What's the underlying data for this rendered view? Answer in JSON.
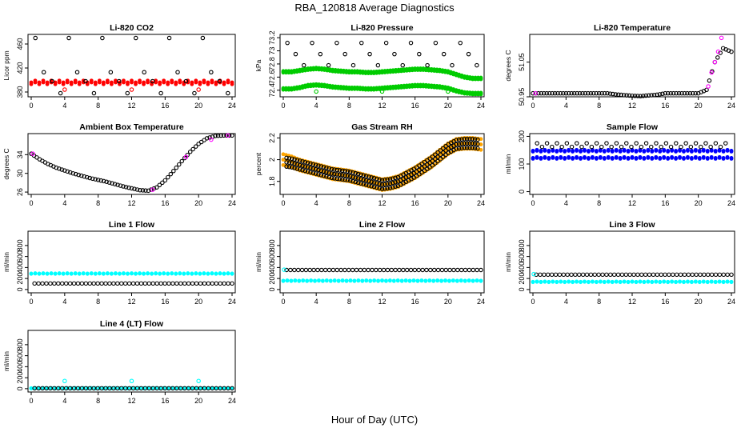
{
  "title": "RBA_120818  Average Diagnostics",
  "xlabel": "Hour of Day (UTC)",
  "chart_data": [
    {
      "type": "scatter",
      "title": "Li-820 CO2",
      "ylabel": "Licor ppm",
      "xlim": [
        0,
        24
      ],
      "ylim": [
        372,
        476
      ],
      "xticks": [
        0,
        4,
        8,
        12,
        16,
        20,
        24
      ],
      "yticks": [
        380,
        420,
        460
      ],
      "series": [
        {
          "color": "#ff0000",
          "marker": "filled",
          "shape": "band",
          "x0": 0,
          "x1": 24,
          "y": 396,
          "spread": 3
        },
        {
          "color": "#000000",
          "marker": "open",
          "shape": "levels",
          "x0": 0.5,
          "x1": 23.5,
          "step": 1.0,
          "levels": [
            470,
            413,
            398,
            378
          ]
        }
      ],
      "points": [
        {
          "color": "#ff0000",
          "x": 4,
          "y": 384
        },
        {
          "color": "#ff0000",
          "x": 12,
          "y": 384
        },
        {
          "color": "#ff0000",
          "x": 20,
          "y": 384
        }
      ]
    },
    {
      "type": "scatter",
      "title": "Li-820 Pressure",
      "ylabel": "kPa",
      "xlim": [
        0,
        24
      ],
      "ylim": [
        72.3,
        73.25
      ],
      "xticks": [
        0,
        4,
        8,
        12,
        16,
        20,
        24
      ],
      "yticks": [
        72.4,
        72.6,
        72.8,
        73.0,
        73.2
      ],
      "series": [
        {
          "color": "#00cc00",
          "marker": "filled",
          "shape": "line",
          "x0": 0,
          "x1": 24,
          "spread": 0.012,
          "y": [
            72.68,
            72.68,
            72.7,
            72.72,
            72.73,
            72.72,
            72.7,
            72.69,
            72.68,
            72.68,
            72.67,
            72.67,
            72.68,
            72.69,
            72.7,
            72.71,
            72.72,
            72.72,
            72.71,
            72.7,
            72.68,
            72.64,
            72.6,
            72.58,
            72.58
          ]
        },
        {
          "color": "#00cc00",
          "marker": "filled",
          "shape": "line",
          "x0": 0,
          "x1": 24,
          "spread": 0.012,
          "y": [
            72.42,
            72.42,
            72.44,
            72.47,
            72.48,
            72.47,
            72.45,
            72.44,
            72.43,
            72.43,
            72.42,
            72.42,
            72.43,
            72.44,
            72.45,
            72.46,
            72.47,
            72.47,
            72.46,
            72.45,
            72.43,
            72.39,
            72.36,
            72.35,
            72.35
          ]
        },
        {
          "color": "#000000",
          "marker": "open",
          "shape": "levels",
          "x0": 0.5,
          "x1": 23.5,
          "step": 1.0,
          "levels": [
            73.12,
            72.95,
            72.78
          ]
        }
      ],
      "points": [
        {
          "color": "#00cc00",
          "x": 4,
          "y": 72.38
        },
        {
          "color": "#00cc00",
          "x": 12,
          "y": 72.38
        },
        {
          "color": "#00cc00",
          "x": 20,
          "y": 72.38
        }
      ]
    },
    {
      "type": "scatter",
      "title": "Li-820 Temperature",
      "ylabel": "degrees C",
      "xlim": [
        0,
        24
      ],
      "ylim": [
        50.95,
        51.13
      ],
      "xticks": [
        0,
        4,
        8,
        12,
        16,
        20,
        24
      ],
      "yticks": [
        50.95,
        51.05
      ],
      "series": [
        {
          "color": "#000000",
          "marker": "open",
          "shape": "line",
          "x0": 0,
          "x1": 24,
          "spread": 0.0,
          "y": [
            50.96,
            50.96,
            50.96,
            50.96,
            50.96,
            50.96,
            50.96,
            50.96,
            50.96,
            50.96,
            50.957,
            50.955,
            50.953,
            50.952,
            50.954,
            50.956,
            50.96,
            50.96,
            50.96,
            50.96,
            50.96,
            50.97,
            51.05,
            51.09,
            51.08
          ]
        }
      ],
      "points": [
        {
          "color": "#ff00ff",
          "x": 0.3,
          "y": 50.96
        },
        {
          "color": "#ff00ff",
          "x": 21.2,
          "y": 50.98
        },
        {
          "color": "#ff00ff",
          "x": 21.6,
          "y": 51.02
        },
        {
          "color": "#ff00ff",
          "x": 22.0,
          "y": 51.05
        },
        {
          "color": "#ff00ff",
          "x": 22.4,
          "y": 51.08
        },
        {
          "color": "#ff00ff",
          "x": 22.8,
          "y": 51.12
        }
      ]
    },
    {
      "type": "scatter",
      "title": "Ambient Box Temperature",
      "ylabel": "degrees C",
      "xlim": [
        0,
        24
      ],
      "ylim": [
        25.5,
        38.5
      ],
      "xticks": [
        0,
        4,
        8,
        12,
        16,
        20,
        24
      ],
      "yticks": [
        26,
        30,
        34
      ],
      "series": [
        {
          "color": "#000000",
          "marker": "open",
          "shape": "line",
          "x0": 0,
          "x1": 24,
          "spread": 0.0,
          "y": [
            34.2,
            33.0,
            32.0,
            31.2,
            30.6,
            30.0,
            29.5,
            29.0,
            28.6,
            28.2,
            27.7,
            27.2,
            26.8,
            26.4,
            26.3,
            27.0,
            28.5,
            30.5,
            32.6,
            34.6,
            36.3,
            37.5,
            38.0,
            38.1,
            38.1
          ]
        }
      ],
      "points": [
        {
          "color": "#ff00ff",
          "x": 0.2,
          "y": 34.2
        },
        {
          "color": "#ff00ff",
          "x": 14.5,
          "y": 26.5
        },
        {
          "color": "#ff00ff",
          "x": 18.5,
          "y": 33.5
        },
        {
          "color": "#ff00ff",
          "x": 21.5,
          "y": 37.2
        },
        {
          "color": "#ff00ff",
          "x": 23.5,
          "y": 38.1
        }
      ]
    },
    {
      "type": "scatter",
      "title": "Gas Stream RH",
      "ylabel": "percent",
      "xlim": [
        0,
        24
      ],
      "ylim": [
        1.68,
        2.24
      ],
      "xticks": [
        0,
        4,
        8,
        12,
        16,
        20,
        24
      ],
      "yticks": [
        1.8,
        2.0,
        2.2
      ],
      "series": [
        {
          "color": "#ffa500",
          "marker": "filled",
          "shape": "line",
          "x0": 0,
          "x1": 24,
          "spread": 0.05,
          "y": [
            2.0,
            1.98,
            1.95,
            1.93,
            1.91,
            1.89,
            1.87,
            1.86,
            1.85,
            1.83,
            1.81,
            1.79,
            1.77,
            1.78,
            1.8,
            1.84,
            1.88,
            1.93,
            1.98,
            2.04,
            2.1,
            2.14,
            2.15,
            2.15,
            2.14
          ]
        },
        {
          "color": "#000000",
          "marker": "open",
          "shape": "line",
          "x0": 0.4,
          "x1": 23.6,
          "spread": 0.04,
          "y": [
            1.98,
            1.97,
            1.95,
            1.93,
            1.91,
            1.89,
            1.87,
            1.86,
            1.85,
            1.83,
            1.81,
            1.79,
            1.77,
            1.78,
            1.8,
            1.84,
            1.88,
            1.93,
            1.98,
            2.04,
            2.1,
            2.14,
            2.15,
            2.15,
            2.14
          ]
        }
      ],
      "points": []
    },
    {
      "type": "scatter",
      "title": "Sample Flow",
      "ylabel": "ml/min",
      "xlim": [
        0,
        24
      ],
      "ylim": [
        -10,
        210
      ],
      "xticks": [
        0,
        4,
        8,
        12,
        16,
        20,
        24
      ],
      "yticks": [
        0,
        100,
        200
      ],
      "series": [
        {
          "color": "#0000ff",
          "marker": "filled",
          "shape": "band",
          "x0": 0,
          "x1": 24,
          "y": 148,
          "spread": 3
        },
        {
          "color": "#0000ff",
          "marker": "filled",
          "shape": "band",
          "x0": 0,
          "x1": 24,
          "y": 122,
          "spread": 3
        },
        {
          "color": "#000000",
          "marker": "open",
          "shape": "levels",
          "x0": 0.5,
          "x1": 23.5,
          "step": 0.6,
          "levels": [
            175,
            162
          ]
        }
      ],
      "points": []
    },
    {
      "type": "scatter",
      "title": "Line 1 Flow",
      "ylabel": "ml/min",
      "xlim": [
        0,
        24
      ],
      "ylim": [
        -60,
        1060
      ],
      "xticks": [
        0,
        4,
        8,
        12,
        16,
        20,
        24
      ],
      "yticks": [
        0,
        200,
        400,
        600,
        800
      ],
      "series": [
        {
          "color": "#00ffff",
          "marker": "filled",
          "shape": "band",
          "x0": 0,
          "x1": 24,
          "y": 290,
          "spread": 6
        },
        {
          "color": "#000000",
          "marker": "open",
          "shape": "band",
          "x0": 0.4,
          "x1": 24,
          "y": 110,
          "spread": 0
        }
      ],
      "points": []
    },
    {
      "type": "scatter",
      "title": "Line 2 Flow",
      "ylabel": "ml/min",
      "xlim": [
        0,
        24
      ],
      "ylim": [
        -60,
        1060
      ],
      "xticks": [
        0,
        4,
        8,
        12,
        16,
        20,
        24
      ],
      "yticks": [
        0,
        200,
        400,
        600,
        800
      ],
      "series": [
        {
          "color": "#00ffff",
          "marker": "filled",
          "shape": "band",
          "x0": 0,
          "x1": 24,
          "y": 160,
          "spread": 6
        },
        {
          "color": "#000000",
          "marker": "open",
          "shape": "band",
          "x0": 0.4,
          "x1": 24,
          "y": 355,
          "spread": 0
        }
      ],
      "points": [
        {
          "color": "#00ffff",
          "x": 0.1,
          "y": 360
        }
      ]
    },
    {
      "type": "scatter",
      "title": "Line 3 Flow",
      "ylabel": "ml/min",
      "xlim": [
        0,
        24
      ],
      "ylim": [
        -60,
        1060
      ],
      "xticks": [
        0,
        4,
        8,
        12,
        16,
        20,
        24
      ],
      "yticks": [
        0,
        200,
        400,
        600,
        800
      ],
      "series": [
        {
          "color": "#00ffff",
          "marker": "filled",
          "shape": "band",
          "x0": 0,
          "x1": 24,
          "y": 140,
          "spread": 6
        },
        {
          "color": "#000000",
          "marker": "open",
          "shape": "band",
          "x0": 0.4,
          "x1": 24,
          "y": 270,
          "spread": 0
        }
      ],
      "points": [
        {
          "color": "#00ffff",
          "x": 0.1,
          "y": 280
        }
      ]
    },
    {
      "type": "scatter",
      "title": "Line 4 (LT) Flow",
      "ylabel": "ml/min",
      "xlim": [
        0,
        24
      ],
      "ylim": [
        -60,
        1060
      ],
      "xticks": [
        0,
        4,
        8,
        12,
        16,
        20,
        24
      ],
      "yticks": [
        0,
        200,
        400,
        600,
        800
      ],
      "series": [
        {
          "color": "#00ffff",
          "marker": "filled",
          "shape": "band",
          "x0": 0,
          "x1": 24,
          "y": 8,
          "spread": 3
        },
        {
          "color": "#000000",
          "marker": "open",
          "shape": "band",
          "x0": 0.4,
          "x1": 24,
          "y": 8,
          "spread": 0
        }
      ],
      "points": [
        {
          "color": "#00ffff",
          "x": 4,
          "y": 140
        },
        {
          "color": "#00ffff",
          "x": 12,
          "y": 140
        },
        {
          "color": "#00ffff",
          "x": 20,
          "y": 140
        }
      ]
    }
  ]
}
